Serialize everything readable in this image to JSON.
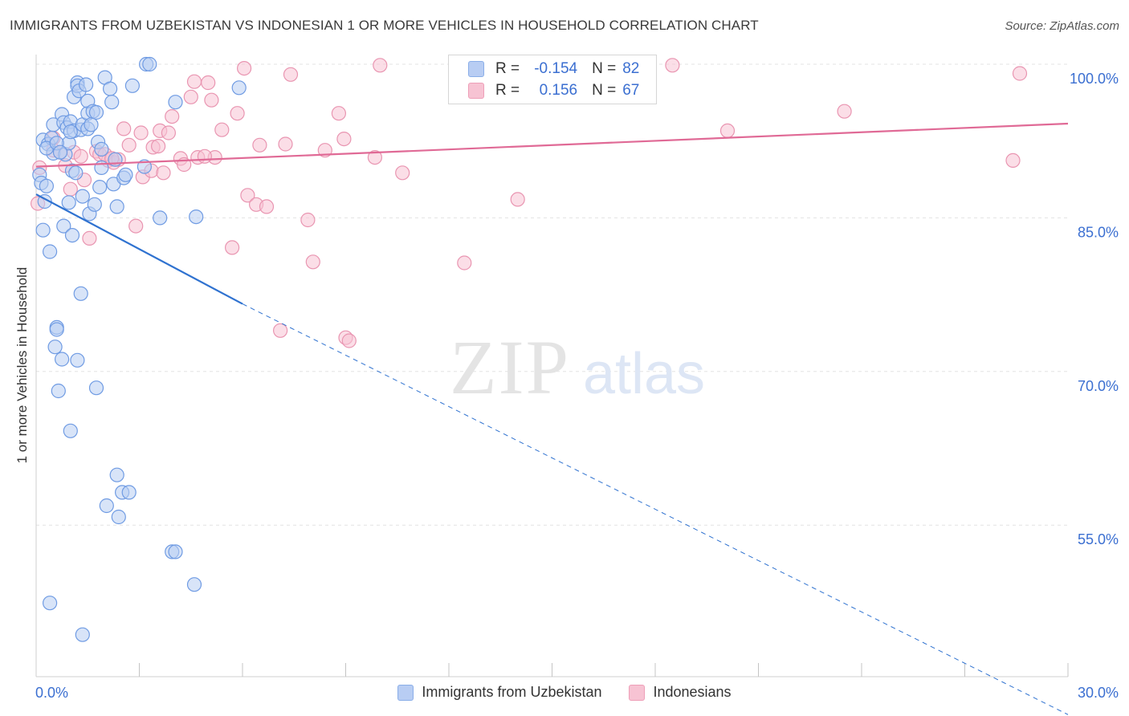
{
  "title": "IMMIGRANTS FROM UZBEKISTAN VS INDONESIAN 1 OR MORE VEHICLES IN HOUSEHOLD CORRELATION CHART",
  "source": "Source: ZipAtlas.com",
  "watermark": {
    "zip": "ZIP",
    "atlas": "atlas"
  },
  "stats": {
    "r_label": "R =",
    "n_label": "N =",
    "series1": {
      "r": "-0.154",
      "n": "82"
    },
    "series2": {
      "r": "0.156",
      "n": "67"
    }
  },
  "colors": {
    "blue_fill": "#b8cdf3",
    "blue_stroke": "#6f9be3",
    "blue_line": "#2f72d0",
    "pink_fill": "#f7c3d3",
    "pink_stroke": "#e995b1",
    "pink_line": "#e06a96",
    "axis_text": "#3b6fd1",
    "grid": "#e3e3e3"
  },
  "chart_data": {
    "type": "scatter",
    "title": "IMMIGRANTS FROM UZBEKISTAN VS INDONESIAN 1 OR MORE VEHICLES IN HOUSEHOLD CORRELATION CHART",
    "xlabel": "",
    "ylabel": "1 or more Vehicles in Household",
    "xlim": [
      0,
      30
    ],
    "ylim": [
      41.5,
      102
    ],
    "x_tick_labels": [
      {
        "value": 0,
        "label": "0.0%"
      },
      {
        "value": 30,
        "label": "30.0%"
      }
    ],
    "x_minor_ticks": [
      3,
      6,
      9,
      12,
      15,
      18,
      21,
      24,
      27,
      30
    ],
    "y_ticks": [
      {
        "value": 100,
        "label": "100.0%"
      },
      {
        "value": 85,
        "label": "85.0%"
      },
      {
        "value": 70,
        "label": "70.0%"
      },
      {
        "value": 55,
        "label": "55.0%"
      }
    ],
    "series": [
      {
        "name": "Immigrants from Uzbekistan",
        "color": "blue",
        "r": -0.154,
        "n": 82,
        "trend": {
          "x0": 0,
          "y0": 87.3,
          "x1": 6.0,
          "y1": 76.6,
          "dash_x1": 30,
          "dash_y1": 36.5
        },
        "points": [
          [
            0.1,
            89.2
          ],
          [
            0.2,
            92.6
          ],
          [
            0.15,
            88.4
          ],
          [
            0.2,
            83.8
          ],
          [
            0.3,
            88.1
          ],
          [
            0.25,
            86.6
          ],
          [
            0.35,
            92.2
          ],
          [
            0.4,
            81.7
          ],
          [
            0.45,
            92.8
          ],
          [
            0.5,
            94.1
          ],
          [
            0.5,
            91.3
          ],
          [
            0.55,
            72.4
          ],
          [
            0.6,
            74.3
          ],
          [
            0.6,
            74.1
          ],
          [
            0.65,
            68.1
          ],
          [
            0.75,
            95.1
          ],
          [
            0.75,
            71.2
          ],
          [
            0.8,
            94.3
          ],
          [
            0.8,
            84.2
          ],
          [
            0.85,
            91.2
          ],
          [
            0.9,
            93.8
          ],
          [
            0.95,
            92.3
          ],
          [
            0.95,
            86.5
          ],
          [
            1.0,
            94.4
          ],
          [
            1.05,
            89.6
          ],
          [
            1.0,
            64.2
          ],
          [
            1.05,
            83.3
          ],
          [
            1.1,
            93.5
          ],
          [
            1.1,
            96.8
          ],
          [
            1.15,
            89.4
          ],
          [
            1.2,
            98.2
          ],
          [
            1.2,
            97.9
          ],
          [
            1.25,
            97.4
          ],
          [
            1.3,
            93.6
          ],
          [
            1.3,
            77.6
          ],
          [
            1.2,
            71.1
          ],
          [
            1.35,
            94.1
          ],
          [
            1.35,
            87.1
          ],
          [
            1.45,
            98.0
          ],
          [
            1.5,
            95.2
          ],
          [
            1.5,
            96.4
          ],
          [
            1.5,
            93.7
          ],
          [
            1.55,
            85.4
          ],
          [
            1.6,
            94.1
          ],
          [
            1.65,
            95.4
          ],
          [
            1.7,
            86.3
          ],
          [
            1.75,
            95.3
          ],
          [
            1.75,
            68.4
          ],
          [
            1.8,
            92.4
          ],
          [
            1.85,
            88.0
          ],
          [
            1.9,
            91.7
          ],
          [
            1.9,
            89.9
          ],
          [
            2.0,
            98.7
          ],
          [
            2.05,
            56.9
          ],
          [
            2.15,
            97.6
          ],
          [
            2.2,
            96.3
          ],
          [
            2.25,
            88.3
          ],
          [
            2.3,
            90.7
          ],
          [
            2.35,
            86.1
          ],
          [
            2.35,
            59.9
          ],
          [
            2.4,
            55.8
          ],
          [
            2.5,
            58.2
          ],
          [
            2.55,
            88.9
          ],
          [
            2.6,
            89.2
          ],
          [
            2.7,
            58.2
          ],
          [
            2.8,
            97.9
          ],
          [
            3.15,
            90.0
          ],
          [
            3.2,
            100.0
          ],
          [
            3.3,
            100.0
          ],
          [
            3.6,
            85.0
          ],
          [
            3.95,
            52.4
          ],
          [
            4.05,
            52.4
          ],
          [
            4.05,
            96.3
          ],
          [
            4.6,
            49.2
          ],
          [
            4.65,
            85.1
          ],
          [
            5.9,
            97.7
          ],
          [
            0.4,
            47.4
          ],
          [
            1.35,
            44.3
          ],
          [
            0.3,
            91.8
          ],
          [
            0.6,
            92.3
          ],
          [
            0.7,
            91.4
          ],
          [
            1.0,
            93.4
          ]
        ]
      },
      {
        "name": "Indonesians",
        "color": "pink",
        "r": 0.156,
        "n": 67,
        "trend": {
          "x0": 0,
          "y0": 90.0,
          "x1": 30,
          "y1": 94.2
        },
        "points": [
          [
            0.05,
            86.4
          ],
          [
            0.1,
            89.9
          ],
          [
            0.5,
            92.8
          ],
          [
            0.5,
            91.6
          ],
          [
            0.7,
            91.4
          ],
          [
            0.85,
            90.1
          ],
          [
            1.0,
            87.8
          ],
          [
            1.1,
            91.4
          ],
          [
            1.4,
            88.7
          ],
          [
            1.55,
            83.0
          ],
          [
            1.75,
            91.5
          ],
          [
            1.85,
            91.2
          ],
          [
            2.1,
            90.6
          ],
          [
            2.25,
            90.4
          ],
          [
            2.4,
            90.7
          ],
          [
            2.55,
            93.7
          ],
          [
            2.7,
            92.1
          ],
          [
            2.9,
            84.2
          ],
          [
            3.05,
            93.3
          ],
          [
            3.1,
            89.0
          ],
          [
            3.35,
            89.6
          ],
          [
            3.4,
            91.9
          ],
          [
            3.6,
            93.5
          ],
          [
            3.7,
            89.4
          ],
          [
            3.85,
            93.3
          ],
          [
            3.95,
            94.9
          ],
          [
            4.2,
            90.8
          ],
          [
            4.3,
            90.2
          ],
          [
            4.5,
            96.8
          ],
          [
            4.6,
            98.3
          ],
          [
            4.7,
            90.9
          ],
          [
            5.0,
            98.2
          ],
          [
            5.1,
            96.5
          ],
          [
            5.2,
            90.9
          ],
          [
            5.4,
            93.6
          ],
          [
            5.7,
            82.1
          ],
          [
            5.85,
            95.2
          ],
          [
            6.05,
            99.6
          ],
          [
            6.15,
            87.2
          ],
          [
            6.4,
            86.3
          ],
          [
            6.5,
            92.1
          ],
          [
            6.7,
            86.1
          ],
          [
            7.1,
            74.0
          ],
          [
            7.25,
            92.2
          ],
          [
            7.4,
            99.0
          ],
          [
            7.9,
            84.8
          ],
          [
            8.05,
            80.7
          ],
          [
            8.4,
            91.6
          ],
          [
            8.8,
            95.2
          ],
          [
            8.95,
            92.7
          ],
          [
            9.0,
            73.3
          ],
          [
            9.1,
            73.0
          ],
          [
            9.85,
            90.9
          ],
          [
            10.0,
            99.9
          ],
          [
            10.65,
            89.4
          ],
          [
            12.45,
            80.6
          ],
          [
            14.0,
            86.8
          ],
          [
            18.5,
            99.9
          ],
          [
            20.1,
            93.5
          ],
          [
            23.5,
            95.4
          ],
          [
            28.4,
            90.6
          ],
          [
            28.6,
            99.1
          ],
          [
            1.3,
            91.0
          ],
          [
            2.0,
            91.2
          ],
          [
            2.2,
            90.8
          ],
          [
            3.55,
            92.0
          ],
          [
            4.9,
            91.0
          ]
        ]
      }
    ]
  },
  "legend": {
    "series1": "Immigrants from Uzbekistan",
    "series2": "Indonesians"
  }
}
